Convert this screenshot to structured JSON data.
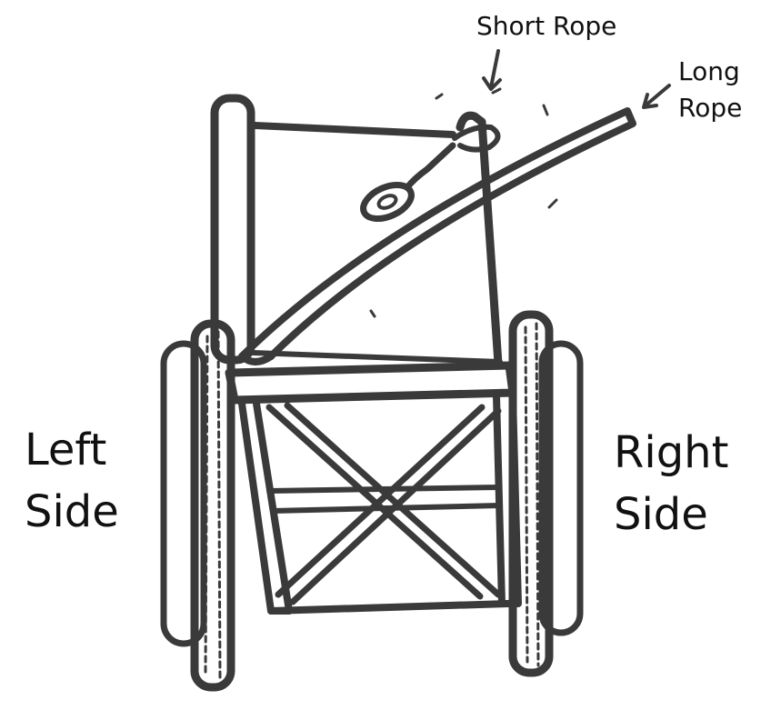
{
  "labels": {
    "short_rope": "Short Rope",
    "long_rope_line1": "Long",
    "long_rope_line2": "Rope",
    "left_side_line1": "Left",
    "left_side_line2": "Side",
    "right_side_line1": "Right",
    "right_side_line2": "Side"
  },
  "colors": {
    "ink": "#3a3a3a",
    "text": "#111111",
    "background": "#ffffff"
  }
}
